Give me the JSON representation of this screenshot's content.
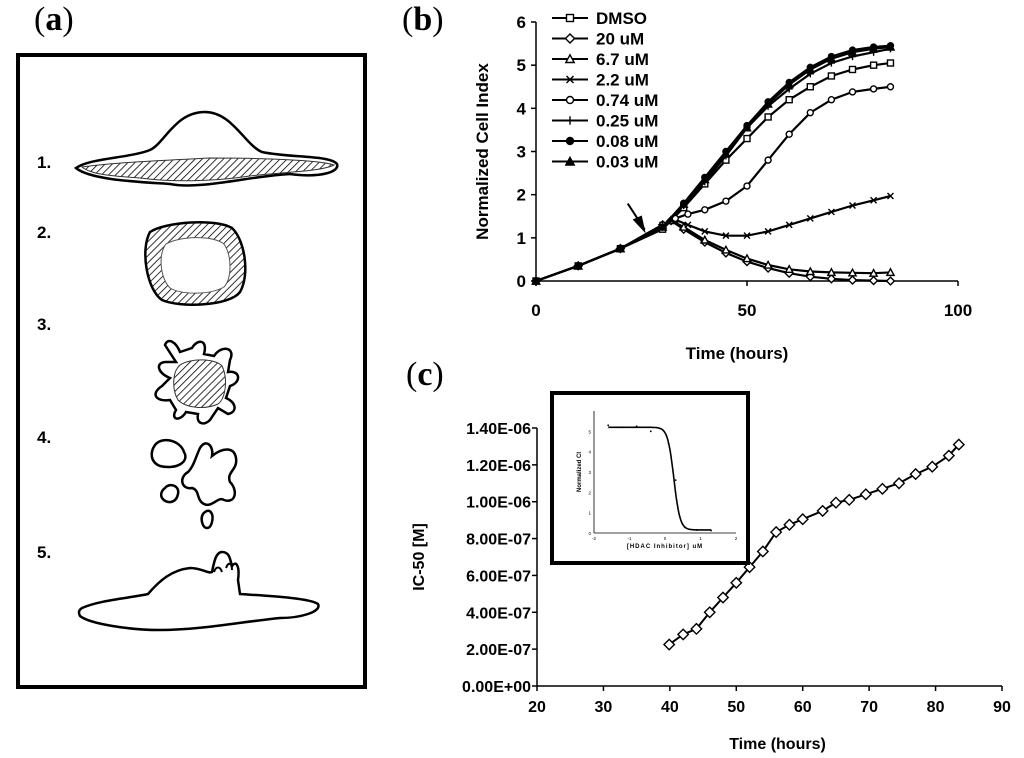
{
  "panels": {
    "a": "(a)",
    "b": "(b)",
    "c": "(c)"
  },
  "panel_a": {
    "items": [
      "1.",
      "2.",
      "3.",
      "4.",
      "5."
    ]
  },
  "colors": {
    "ink": "#000000",
    "background": "#ffffff"
  },
  "chart_data": [
    {
      "type": "line",
      "panel": "(b)",
      "title": "",
      "xlabel": "Time (hours)",
      "ylabel": "Normalized Cell Index",
      "xlim": [
        0,
        100
      ],
      "ylim": [
        0,
        6
      ],
      "xticks": [
        "0",
        "50",
        "100"
      ],
      "yticks": [
        "0",
        "1",
        "2",
        "3",
        "4",
        "5",
        "6"
      ],
      "legend_position": "top-left",
      "series": [
        {
          "name": "DMSO",
          "marker": "square",
          "x": [
            0,
            10,
            20,
            30,
            35,
            40,
            45,
            50,
            55,
            60,
            65,
            70,
            75,
            80,
            84
          ],
          "y": [
            0,
            0.35,
            0.75,
            1.2,
            1.7,
            2.25,
            2.8,
            3.3,
            3.8,
            4.2,
            4.5,
            4.75,
            4.9,
            5.0,
            5.05
          ]
        },
        {
          "name": "20 uM",
          "marker": "diamond",
          "x": [
            0,
            10,
            20,
            30,
            32,
            35,
            40,
            45,
            50,
            55,
            60,
            65,
            70,
            75,
            80,
            84
          ],
          "y": [
            0,
            0.35,
            0.75,
            1.3,
            1.4,
            1.2,
            0.9,
            0.65,
            0.45,
            0.3,
            0.18,
            0.1,
            0.05,
            0.02,
            0.01,
            0.0
          ]
        },
        {
          "name": "6.7 uM",
          "marker": "triangle",
          "x": [
            0,
            10,
            20,
            30,
            32,
            35,
            40,
            45,
            50,
            55,
            60,
            65,
            70,
            75,
            80,
            84
          ],
          "y": [
            0,
            0.35,
            0.75,
            1.3,
            1.4,
            1.25,
            0.95,
            0.72,
            0.52,
            0.37,
            0.27,
            0.22,
            0.2,
            0.19,
            0.18,
            0.2
          ]
        },
        {
          "name": "2.2 uM",
          "marker": "x",
          "x": [
            0,
            10,
            20,
            30,
            33,
            36,
            40,
            45,
            50,
            55,
            60,
            65,
            70,
            75,
            80,
            84
          ],
          "y": [
            0,
            0.35,
            0.75,
            1.3,
            1.42,
            1.3,
            1.15,
            1.05,
            1.05,
            1.15,
            1.3,
            1.45,
            1.6,
            1.75,
            1.87,
            1.97
          ]
        },
        {
          "name": "0.74 uM",
          "marker": "circle-open",
          "x": [
            0,
            10,
            20,
            30,
            33,
            36,
            40,
            45,
            50,
            55,
            60,
            65,
            70,
            75,
            80,
            84
          ],
          "y": [
            0,
            0.35,
            0.75,
            1.3,
            1.45,
            1.55,
            1.65,
            1.85,
            2.2,
            2.8,
            3.4,
            3.9,
            4.2,
            4.38,
            4.45,
            4.5
          ]
        },
        {
          "name": "0.25 uM",
          "marker": "plus",
          "x": [
            0,
            10,
            20,
            30,
            35,
            40,
            45,
            50,
            55,
            60,
            65,
            70,
            75,
            80,
            84
          ],
          "y": [
            0,
            0.35,
            0.75,
            1.25,
            1.75,
            2.3,
            2.9,
            3.55,
            4.05,
            4.45,
            4.8,
            5.05,
            5.2,
            5.3,
            5.38
          ]
        },
        {
          "name": "0.08 uM",
          "marker": "circle-filled",
          "x": [
            0,
            10,
            20,
            30,
            35,
            40,
            45,
            50,
            55,
            60,
            65,
            70,
            75,
            80,
            84
          ],
          "y": [
            0,
            0.35,
            0.75,
            1.25,
            1.8,
            2.4,
            3.0,
            3.6,
            4.15,
            4.6,
            4.95,
            5.2,
            5.35,
            5.42,
            5.45
          ]
        },
        {
          "name": "0.03 uM",
          "marker": "triangle-filled",
          "x": [
            0,
            10,
            20,
            30,
            35,
            40,
            45,
            50,
            55,
            60,
            65,
            70,
            75,
            80,
            84
          ],
          "y": [
            0,
            0.35,
            0.75,
            1.25,
            1.78,
            2.35,
            2.95,
            3.55,
            4.1,
            4.55,
            4.9,
            5.15,
            5.3,
            5.38,
            5.42
          ]
        }
      ],
      "annotations": [
        {
          "type": "arrow",
          "x": 26,
          "y": 1.1
        }
      ]
    },
    {
      "type": "line",
      "panel": "(c)",
      "title": "",
      "xlabel": "Time (hours)",
      "ylabel": "IC-50 [M]",
      "xlim": [
        20,
        90
      ],
      "ylim": [
        0,
        1.4e-06
      ],
      "xticks": [
        "20",
        "30",
        "40",
        "50",
        "60",
        "70",
        "80",
        "90"
      ],
      "yticks": [
        "0.00E+00",
        "2.00E-07",
        "4.00E-07",
        "6.00E-07",
        "8.00E-07",
        "1.00E-06",
        "1.20E-06",
        "1.40E-06"
      ],
      "series": [
        {
          "marker": "diamond-open",
          "x": [
            39.9,
            42.0,
            44.0,
            46.0,
            48.0,
            50.0,
            52.0,
            54.0,
            56.0,
            58.0,
            60.0,
            63.0,
            65.0,
            67.0,
            69.5,
            72.0,
            74.5,
            77.0,
            79.5,
            82.0,
            83.5
          ],
          "y": [
            2.25e-07,
            2.8e-07,
            3.1e-07,
            4e-07,
            4.8e-07,
            5.6e-07,
            6.45e-07,
            7.3e-07,
            8.35e-07,
            8.75e-07,
            9.05e-07,
            9.5e-07,
            9.95e-07,
            1.01e-06,
            1.04e-06,
            1.07e-06,
            1.1e-06,
            1.15e-06,
            1.19e-06,
            1.25e-06,
            1.31e-06
          ]
        }
      ],
      "inset": {
        "ylabel": "Normalized CI",
        "xlabel": "[HDAC Inhibitor] uM",
        "xticks": [
          "-2",
          "-1",
          "0",
          "1",
          "2"
        ],
        "yticks": [
          "0",
          "1",
          "2",
          "3",
          "4",
          "5"
        ],
        "xlim": [
          -2,
          2
        ],
        "ylim": [
          0,
          6
        ],
        "curve": {
          "top": 5.2,
          "bottom": 0.15,
          "ic50_log": 0.25,
          "hill": 5
        },
        "points": [
          [
            -1.6,
            5.3
          ],
          [
            -1.2,
            5.2
          ],
          [
            -0.8,
            5.25
          ],
          [
            -0.4,
            5.0
          ],
          [
            0.1,
            4.4
          ],
          [
            0.3,
            2.6
          ],
          [
            0.55,
            0.3
          ],
          [
            0.9,
            0.15
          ],
          [
            1.3,
            0.12
          ]
        ]
      }
    }
  ]
}
